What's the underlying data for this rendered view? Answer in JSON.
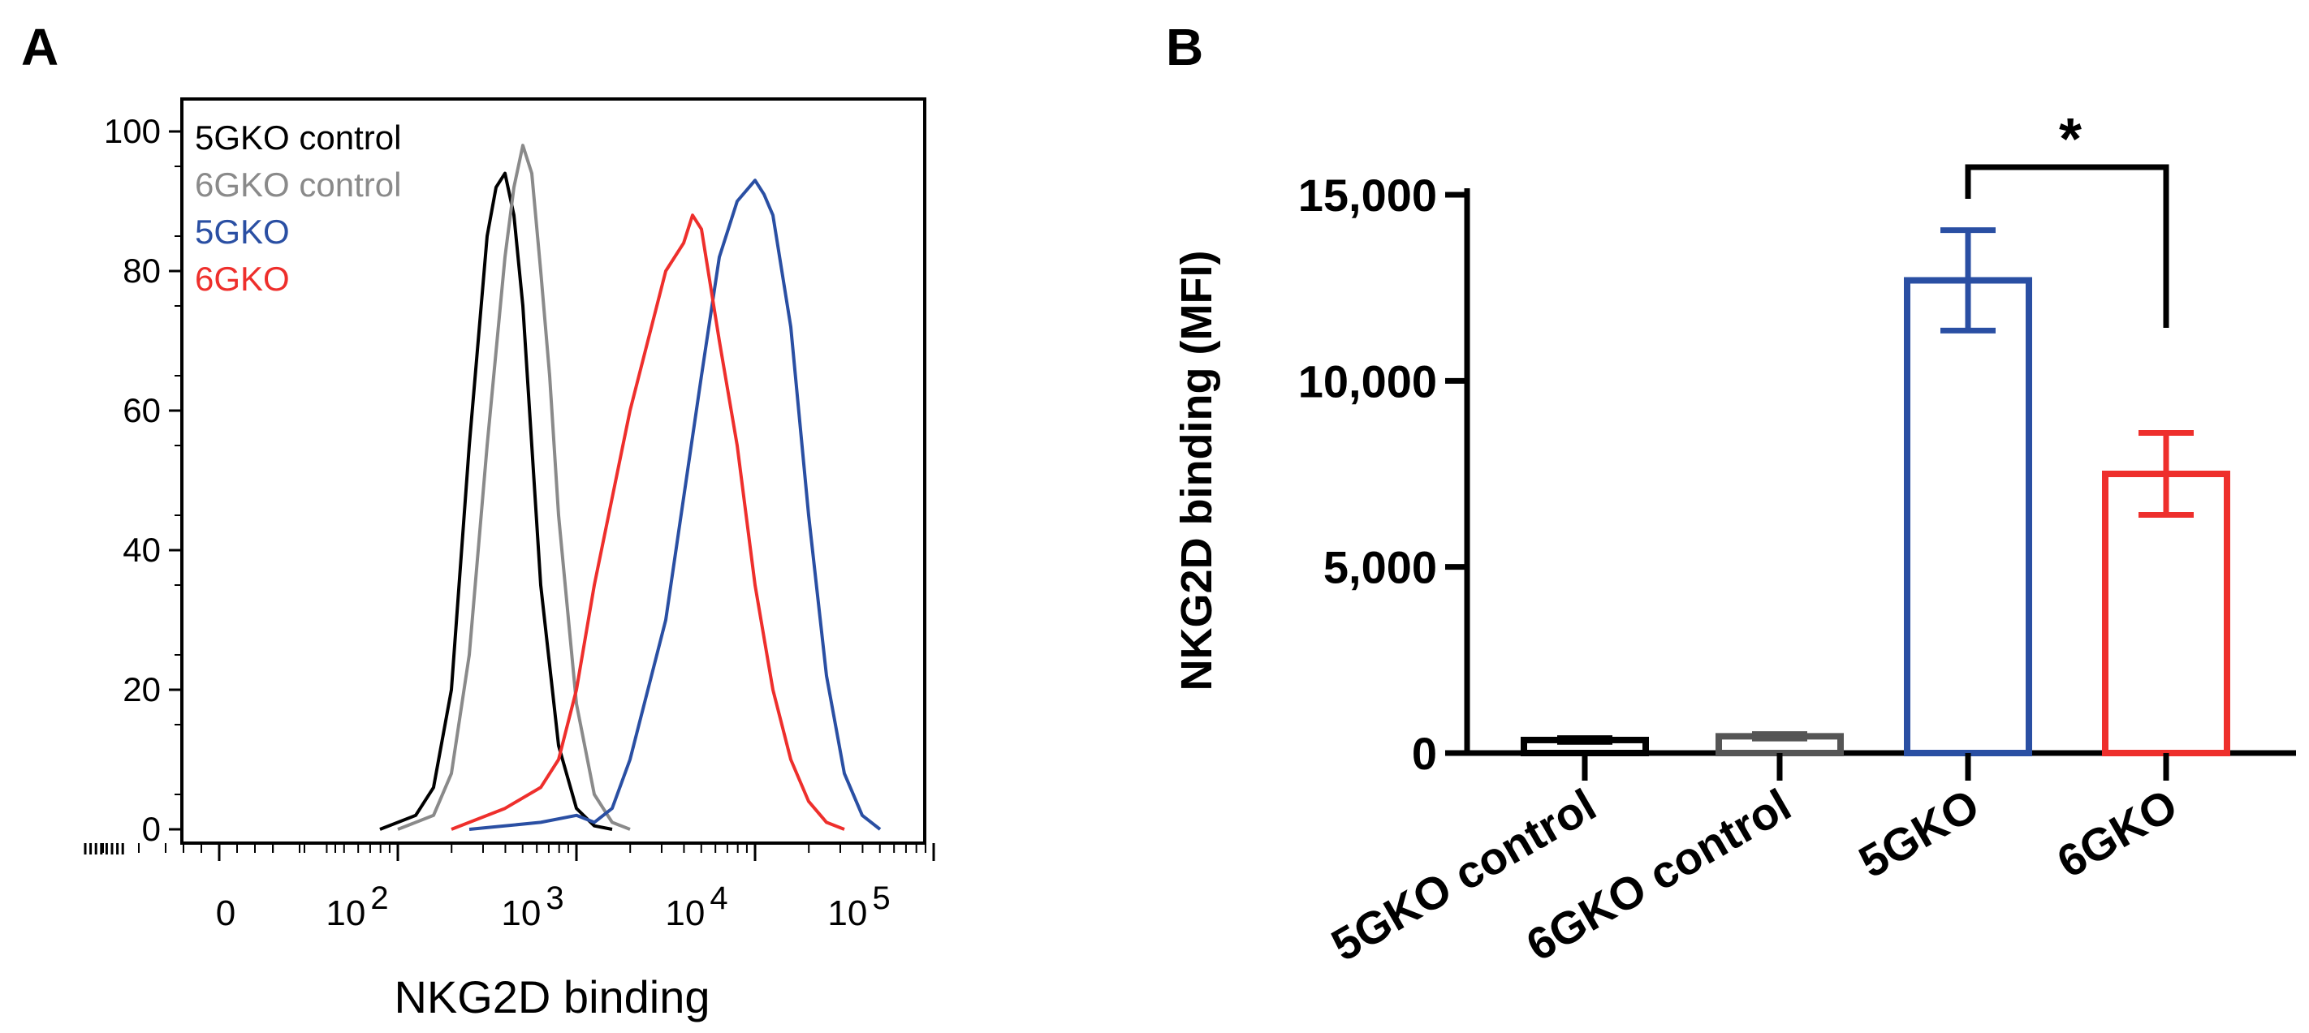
{
  "chart_data": [
    {
      "panel": "A",
      "type": "line",
      "xlabel": "NKG2D binding",
      "ylabel": "",
      "ylim": [
        0,
        100
      ],
      "yticks": [
        "0",
        "20",
        "40",
        "60",
        "80",
        "100"
      ],
      "xticks": [
        {
          "base": "0",
          "exp": ""
        },
        {
          "base": "10",
          "exp": "2"
        },
        {
          "base": "10",
          "exp": "3"
        },
        {
          "base": "10",
          "exp": "4"
        },
        {
          "base": "10",
          "exp": "5"
        }
      ],
      "legend_position": "top-left",
      "series": [
        {
          "name": "5GKO control",
          "color": "#000000",
          "x": [
            1.9,
            2.1,
            2.2,
            2.3,
            2.4,
            2.5,
            2.55,
            2.6,
            2.65,
            2.7,
            2.75,
            2.8,
            2.9,
            3.0,
            3.1,
            3.2
          ],
          "y": [
            0,
            2,
            6,
            20,
            55,
            85,
            92,
            94,
            88,
            75,
            55,
            35,
            12,
            3,
            0.5,
            0
          ]
        },
        {
          "name": "6GKO control",
          "color": "#8a8a8a",
          "x": [
            2.0,
            2.2,
            2.3,
            2.4,
            2.5,
            2.6,
            2.65,
            2.7,
            2.75,
            2.8,
            2.85,
            2.9,
            3.0,
            3.1,
            3.2,
            3.3
          ],
          "y": [
            0,
            2,
            8,
            25,
            55,
            82,
            92,
            98,
            94,
            80,
            65,
            45,
            18,
            5,
            1,
            0
          ]
        },
        {
          "name": "5GKO",
          "color": "#2a4fa3",
          "x": [
            2.4,
            2.8,
            3.0,
            3.1,
            3.2,
            3.3,
            3.5,
            3.7,
            3.8,
            3.9,
            4.0,
            4.05,
            4.1,
            4.2,
            4.3,
            4.4,
            4.5,
            4.6,
            4.7
          ],
          "y": [
            0,
            1,
            2,
            1,
            3,
            10,
            30,
            65,
            82,
            90,
            93,
            91,
            88,
            72,
            45,
            22,
            8,
            2,
            0
          ]
        },
        {
          "name": "6GKO",
          "color": "#ee2f2c",
          "x": [
            2.3,
            2.6,
            2.8,
            2.9,
            3.0,
            3.1,
            3.3,
            3.5,
            3.6,
            3.65,
            3.7,
            3.8,
            3.9,
            4.0,
            4.1,
            4.2,
            4.3,
            4.4,
            4.5
          ],
          "y": [
            0,
            3,
            6,
            10,
            20,
            35,
            60,
            80,
            84,
            88,
            86,
            70,
            55,
            35,
            20,
            10,
            4,
            1,
            0
          ]
        }
      ]
    },
    {
      "panel": "B",
      "type": "bar",
      "ylabel": "NKG2D binding (MFI)",
      "ylim": [
        0,
        15000
      ],
      "yticks": [
        "0",
        "5,000",
        "10,000",
        "15,000"
      ],
      "categories": [
        "5GKO control",
        "6GKO control",
        "5GKO",
        "6GKO"
      ],
      "values": [
        350,
        450,
        12700,
        7500
      ],
      "errors": [
        50,
        60,
        1350,
        1100
      ],
      "colors": [
        "#000000",
        "#555555",
        "#2a4fa3",
        "#ee2f2c"
      ],
      "annotation": "*"
    }
  ],
  "labels": {
    "panel_a": "A",
    "panel_b": "B"
  }
}
